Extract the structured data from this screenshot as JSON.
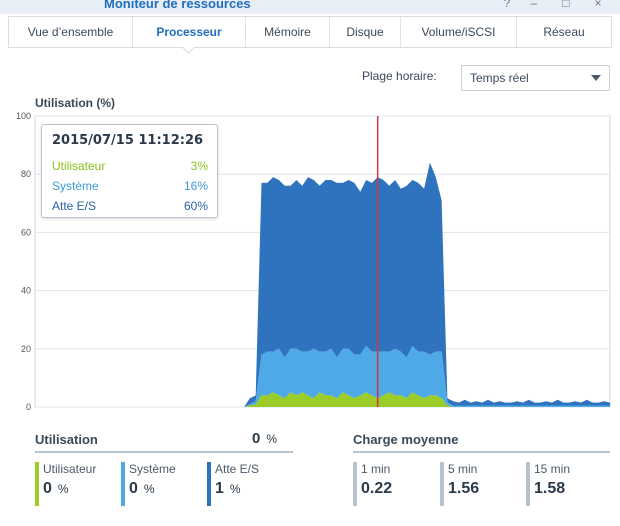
{
  "window": {
    "title": "Moniteur de ressources",
    "controls": [
      "?",
      "–",
      "□",
      "×"
    ]
  },
  "tabs": [
    {
      "label": "Vue d’ensemble",
      "active": false
    },
    {
      "label": "Processeur",
      "active": true
    },
    {
      "label": "Mémoire",
      "active": false
    },
    {
      "label": "Disque",
      "active": false
    },
    {
      "label": "Volume/iSCSI",
      "active": false
    },
    {
      "label": "Réseau",
      "active": false
    }
  ],
  "time_range": {
    "label": "Plage horaire:",
    "value": "Temps réel"
  },
  "chart": {
    "title": "Utilisation (%)"
  },
  "tooltip": {
    "timestamp": "2015/07/15 11:12:26",
    "rows": [
      {
        "label": "Utilisateur",
        "value": "3%"
      },
      {
        "label": "Système",
        "value": "16%"
      },
      {
        "label": "Atte E/S",
        "value": "60%"
      }
    ]
  },
  "utilisation": {
    "title": "Utilisation",
    "total": "0",
    "unit": "%",
    "metrics": [
      {
        "label": "Utilisateur",
        "value": "0",
        "unit": "%"
      },
      {
        "label": "Système",
        "value": "0",
        "unit": "%"
      },
      {
        "label": "Atte E/S",
        "value": "1",
        "unit": "%"
      }
    ]
  },
  "load": {
    "title": "Charge moyenne",
    "items": [
      {
        "label": "1 min",
        "value": "0.22"
      },
      {
        "label": "5 min",
        "value": "1.56"
      },
      {
        "label": "15 min",
        "value": "1.58"
      }
    ]
  },
  "colors": {
    "user": "#9ccc2a",
    "system": "#4ea9e6",
    "iowait": "#2f73bf",
    "cursor": "#d23a3a",
    "accent": "#1f6fbf"
  },
  "chart_data": {
    "type": "area",
    "title": "Utilisation (%)",
    "ylim": [
      0,
      100
    ],
    "yticks": [
      0,
      20,
      40,
      60,
      80,
      100
    ],
    "grid": true,
    "stacked": true,
    "x": [
      0,
      1,
      2,
      3,
      4,
      5,
      6,
      7,
      8,
      9,
      10,
      11,
      12,
      13,
      14,
      15,
      16,
      17,
      18,
      19,
      20,
      21,
      22,
      23,
      24,
      25,
      26,
      27,
      28,
      29,
      30,
      31,
      32,
      33,
      34,
      35,
      36,
      37,
      38,
      39,
      40,
      41,
      42,
      43,
      44,
      45,
      46,
      47,
      48,
      49,
      50,
      51,
      52,
      53,
      54,
      55,
      56,
      57,
      58,
      59,
      60,
      61,
      62,
      63,
      64,
      65,
      66,
      67,
      68,
      69,
      70,
      71,
      72,
      73,
      74,
      75,
      76,
      77,
      78,
      79,
      80,
      81,
      82,
      83,
      84,
      85,
      86,
      87,
      88,
      89,
      90,
      91,
      92,
      93,
      94,
      95,
      96,
      97,
      98,
      99
    ],
    "cursor_x": 59,
    "series": [
      {
        "name": "Utilisateur",
        "values": [
          0,
          0,
          0,
          0,
          0,
          0,
          0,
          0,
          0,
          0,
          0,
          0,
          0,
          0,
          0,
          0,
          0,
          0,
          0,
          0,
          0,
          0,
          0,
          0,
          0,
          0,
          0,
          0,
          0,
          0,
          0,
          0,
          0,
          0,
          0,
          0,
          0,
          0.5,
          1,
          4,
          4,
          5,
          4,
          3,
          5,
          4,
          5,
          4,
          3,
          5,
          4,
          4,
          3,
          5,
          4,
          3,
          4,
          5,
          4,
          3,
          4,
          5,
          4,
          4,
          3,
          5,
          4,
          3,
          4,
          4,
          3,
          0.5,
          0,
          0,
          0,
          0,
          0,
          0,
          0,
          0,
          0,
          0,
          0,
          0,
          0,
          0,
          0,
          0,
          0,
          0,
          0,
          0,
          0,
          0,
          0,
          0,
          0,
          0,
          0,
          0
        ]
      },
      {
        "name": "Système",
        "values": [
          0,
          0,
          0,
          0,
          0,
          0,
          0,
          0,
          0,
          0,
          0,
          0,
          0,
          0,
          0,
          0,
          0,
          0,
          0,
          0,
          0,
          0,
          0,
          0,
          0,
          0,
          0,
          0,
          0,
          0,
          0,
          0,
          0,
          0,
          0,
          0,
          0,
          0.5,
          1,
          14,
          15,
          14,
          16,
          14,
          15,
          16,
          14,
          15,
          17,
          14,
          15,
          16,
          14,
          15,
          16,
          15,
          14,
          16,
          15,
          16,
          15,
          14,
          16,
          15,
          14,
          16,
          15,
          16,
          14,
          15,
          16,
          1,
          0.5,
          0.5,
          0.5,
          0.5,
          0.5,
          0.5,
          0.5,
          0.5,
          0.5,
          0.5,
          0.5,
          0.5,
          0.5,
          0.5,
          0.5,
          0.5,
          0.5,
          0.5,
          0.5,
          0.5,
          0.5,
          0.5,
          0.5,
          0.5,
          0.5,
          0.5,
          0.5,
          0.5
        ]
      },
      {
        "name": "Atte E/S",
        "values": [
          0,
          0,
          0,
          0,
          0,
          0,
          0,
          0,
          0,
          0,
          0,
          0,
          0,
          0,
          0,
          0,
          0,
          0,
          0,
          0,
          0,
          0,
          0,
          0,
          0,
          0,
          0,
          0,
          0,
          0,
          0,
          0,
          0,
          0,
          0,
          0,
          0,
          2,
          2,
          59,
          58,
          60,
          58,
          59,
          56,
          58,
          57,
          60,
          58,
          57,
          59,
          58,
          60,
          57,
          58,
          59,
          56,
          57,
          58,
          60,
          59,
          57,
          58,
          56,
          59,
          57,
          58,
          56,
          66,
          60,
          52,
          1.5,
          1.5,
          1,
          2,
          1,
          1.5,
          1,
          2,
          1,
          1.5,
          1,
          1,
          1.5,
          1,
          2,
          1,
          1,
          1.5,
          1,
          2,
          1,
          1,
          1.5,
          1,
          2,
          1,
          1,
          1.5,
          1
        ]
      }
    ]
  }
}
